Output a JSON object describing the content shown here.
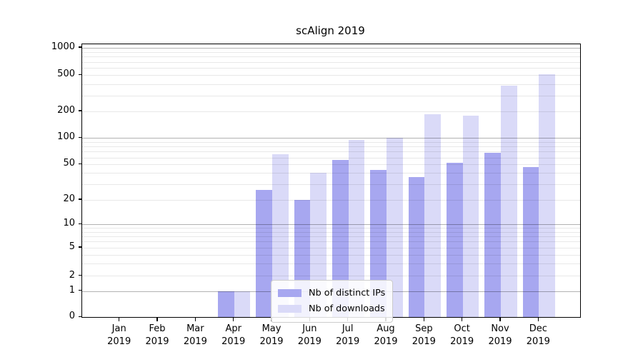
{
  "chart_data": {
    "type": "bar",
    "title": "scAlign 2019",
    "categories": [
      "Jan",
      "Feb",
      "Mar",
      "Apr",
      "May",
      "Jun",
      "Jul",
      "Aug",
      "Sep",
      "Oct",
      "Nov",
      "Dec"
    ],
    "year_label": "2019",
    "series": [
      {
        "name": "Nb of distinct IPs",
        "color": "#a7a7f0",
        "values": [
          0,
          0,
          0,
          1,
          26,
          20,
          56,
          43,
          36,
          52,
          68,
          47
        ]
      },
      {
        "name": "Nb of downloads",
        "color": "#dadaf8",
        "values": [
          0,
          0,
          0,
          1,
          65,
          40,
          95,
          100,
          185,
          180,
          380,
          510
        ]
      }
    ],
    "yscale": "symlog",
    "y_ticks": [
      0,
      1,
      2,
      5,
      10,
      20,
      50,
      100,
      200,
      500,
      1000
    ],
    "ylim": [
      0,
      1100
    ],
    "xlabel": "",
    "ylabel": "",
    "grid": true,
    "legend_position": "lower-center"
  },
  "legend": {
    "items": [
      {
        "label": "Nb of distinct IPs",
        "color": "#a7a7f0"
      },
      {
        "label": "Nb of downloads",
        "color": "#dadaf8"
      }
    ]
  }
}
